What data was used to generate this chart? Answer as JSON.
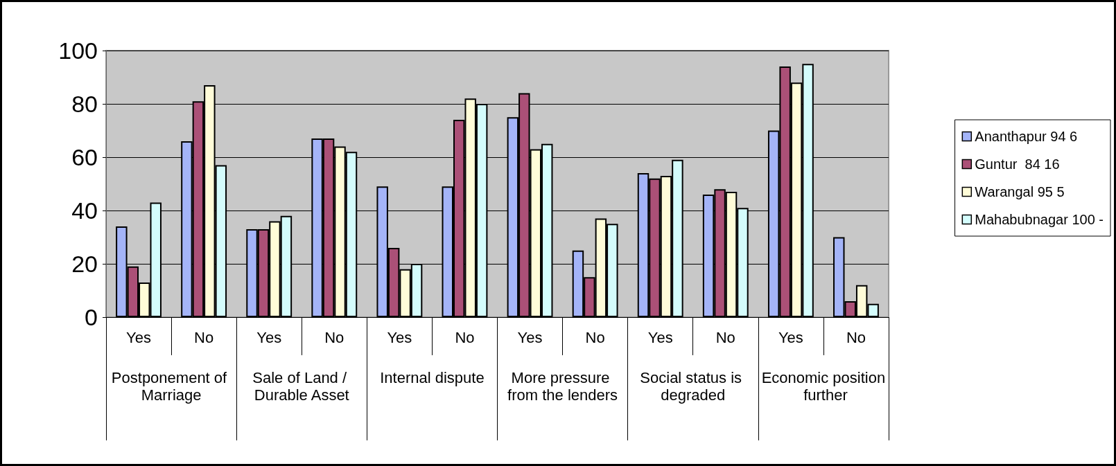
{
  "chart_data": {
    "type": "bar",
    "categories": [
      "Yes",
      "No",
      "Yes",
      "No",
      "Yes",
      "No",
      "Yes",
      "No",
      "Yes",
      "No",
      "Yes",
      "No"
    ],
    "annotations": [
      "Postponement of Marriage",
      "Sale of Land / Durable Asset",
      "Internal dispute",
      "More pressure from the lenders",
      "Social status is degraded",
      "Economic position further"
    ],
    "series": [
      {
        "name": "Ananthapur 94 6",
        "color": "#a4b4f8",
        "values": [
          34,
          66,
          33,
          67,
          49,
          49,
          75,
          25,
          54,
          46,
          70,
          30
        ]
      },
      {
        "name": "Guntur  84 16",
        "color": "#ab5077",
        "values": [
          19,
          81,
          33,
          67,
          26,
          74,
          84,
          15,
          52,
          48,
          94,
          6
        ]
      },
      {
        "name": "Warangal 95 5",
        "color": "#fffcd8",
        "values": [
          13,
          87,
          36,
          64,
          18,
          82,
          63,
          37,
          53,
          47,
          88,
          12
        ]
      },
      {
        "name": "Mahabubnagar 100 -",
        "color": "#d4fcfc",
        "values": [
          43,
          57,
          38,
          62,
          20,
          80,
          65,
          35,
          59,
          41,
          95,
          5
        ]
      }
    ],
    "ylim": [
      0,
      100
    ],
    "yticks": [
      0,
      20,
      40,
      60,
      80,
      100
    ],
    "grid": "y",
    "legend": "right"
  }
}
